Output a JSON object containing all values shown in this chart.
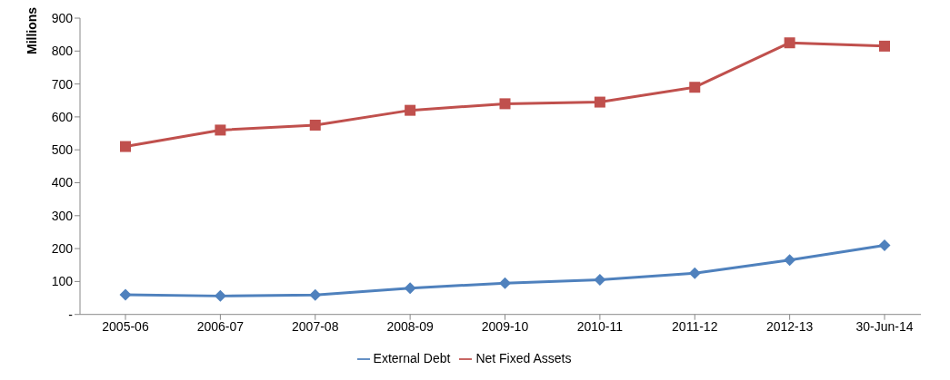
{
  "chart_data": {
    "type": "line",
    "ylabel": "Millions",
    "categories": [
      "2005-06",
      "2006-07",
      "2007-08",
      "2008-09",
      "2009-10",
      "2010-11",
      "2011-12",
      "2012-13",
      "30-Jun-14"
    ],
    "series": [
      {
        "name": "External Debt",
        "color": "#4f81bd",
        "marker": "diamond",
        "values": [
          60,
          56,
          59,
          80,
          95,
          105,
          125,
          165,
          210
        ]
      },
      {
        "name": "Net Fixed Assets",
        "color": "#c0504d",
        "marker": "square",
        "values": [
          510,
          560,
          575,
          620,
          640,
          645,
          690,
          825,
          815
        ]
      }
    ],
    "ylim": [
      0,
      900
    ],
    "yticks": [
      {
        "value": 0,
        "label": "-"
      },
      100,
      200,
      300,
      400,
      500,
      600,
      700,
      800,
      900
    ],
    "grid": false,
    "legend": "bottom",
    "line_style": "solid"
  }
}
